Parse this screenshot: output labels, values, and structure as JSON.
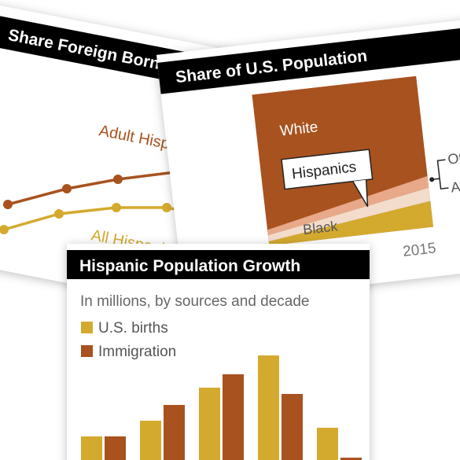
{
  "cards": [
    {
      "title": "Share Foreign Born",
      "labels": [
        "Adult Hispanics",
        "All Hispanics"
      ]
    },
    {
      "title": "Share of U.S. Population",
      "labels": [
        "White",
        "Hispanics",
        "Black",
        "Other",
        "Asian"
      ],
      "x_label": "2015"
    }
  ],
  "chart_data": {
    "type": "bar",
    "title": "Hispanic Population Growth",
    "subtitle": "In millions, by sources and decade",
    "categories": [
      null,
      null,
      null,
      null,
      null
    ],
    "series": [
      {
        "name": "U.S. births",
        "color": "#d4aa2e",
        "values": [
          30,
          50,
          92,
          133,
          41
        ]
      },
      {
        "name": "Immigration",
        "color": "#a8521f",
        "values": [
          30,
          70,
          109,
          84,
          3
        ]
      }
    ],
    "ylim": [
      0,
      150
    ]
  }
}
